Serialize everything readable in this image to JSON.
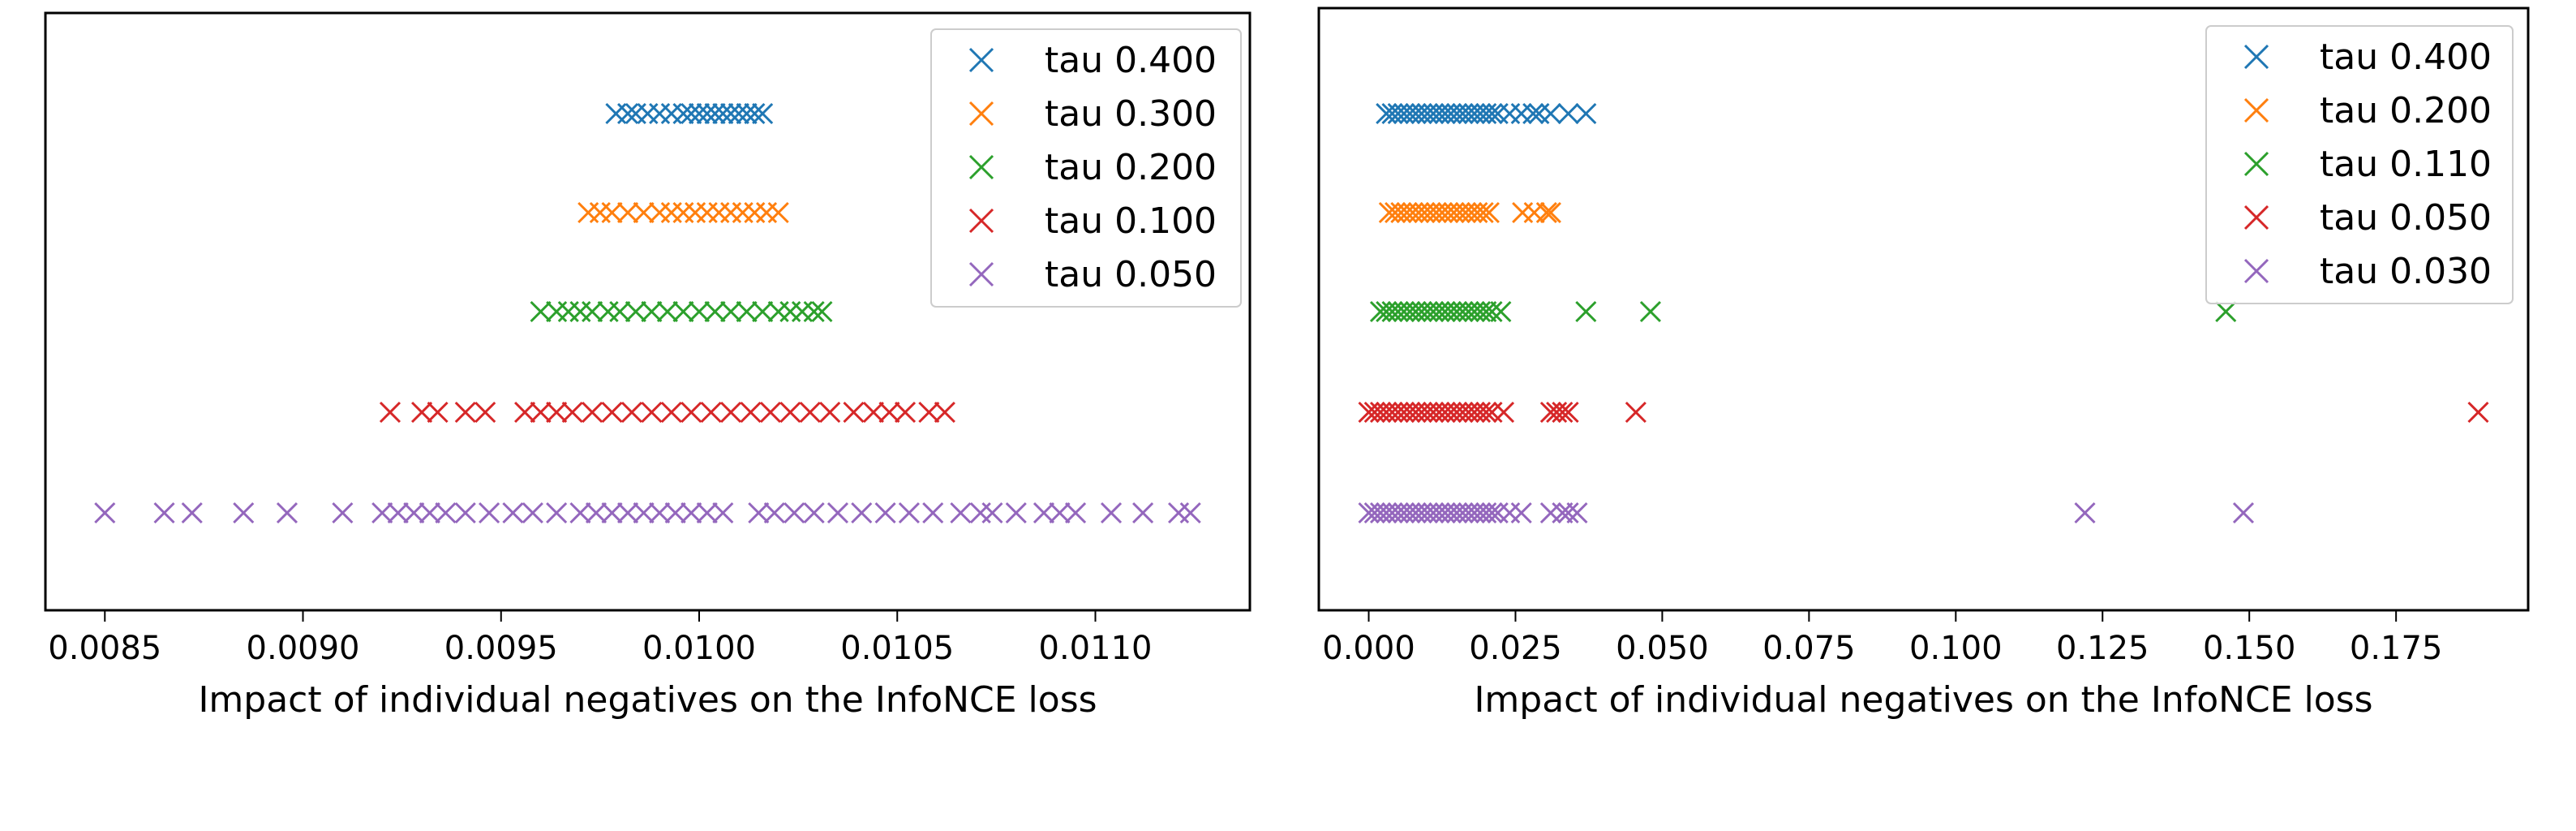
{
  "chart_data": [
    {
      "type": "scatter",
      "title": "",
      "xlabel": "Impact of individual negatives on the InfoNCE loss",
      "ylabel": "",
      "xlim": [
        0.00835,
        0.01139
      ],
      "xticks": [
        0.0085,
        0.009,
        0.0095,
        0.01,
        0.0105,
        0.011
      ],
      "xtick_labels": [
        "0.0085",
        "0.0090",
        "0.0095",
        "0.0100",
        "0.0105",
        "0.0110"
      ],
      "marker": "x",
      "grid": false,
      "legend_position": "top-right",
      "series": [
        {
          "name": "tau 0.400",
          "color": "#1f77b4",
          "row": 0,
          "x": [
            0.00979,
            0.00982,
            0.00984,
            0.00987,
            0.0099,
            0.00993,
            0.00996,
            0.00998,
            0.01,
            0.01002,
            0.01004,
            0.01006,
            0.01008,
            0.0101,
            0.01012,
            0.01014,
            0.01016
          ]
        },
        {
          "name": "tau 0.300",
          "color": "#ff7f0e",
          "row": 1,
          "x": [
            0.00972,
            0.00975,
            0.00978,
            0.00982,
            0.00986,
            0.0099,
            0.00993,
            0.00996,
            0.00999,
            0.01002,
            0.01005,
            0.01008,
            0.01011,
            0.01014,
            0.01017,
            0.0102
          ]
        },
        {
          "name": "tau 0.200",
          "color": "#2ca02c",
          "row": 2,
          "x": [
            0.0096,
            0.00964,
            0.00967,
            0.0097,
            0.00973,
            0.00977,
            0.0098,
            0.00984,
            0.00988,
            0.00992,
            0.00996,
            0.01,
            0.01004,
            0.01008,
            0.01012,
            0.01016,
            0.0102,
            0.01023,
            0.01026,
            0.01029,
            0.01031
          ]
        },
        {
          "name": "tau 0.100",
          "color": "#d62728",
          "row": 3,
          "x": [
            0.00922,
            0.0093,
            0.00934,
            0.00941,
            0.00946,
            0.00956,
            0.0096,
            0.00964,
            0.00968,
            0.00973,
            0.00978,
            0.00983,
            0.00988,
            0.00993,
            0.00998,
            0.01003,
            0.01008,
            0.01013,
            0.01018,
            0.01023,
            0.01028,
            0.01033,
            0.01039,
            0.01044,
            0.01048,
            0.01052,
            0.01058,
            0.01062
          ]
        },
        {
          "name": "tau 0.050",
          "color": "#9467bd",
          "row": 4,
          "x": [
            0.0085,
            0.00865,
            0.00872,
            0.00885,
            0.00896,
            0.0091,
            0.0092,
            0.00924,
            0.00928,
            0.00932,
            0.00936,
            0.00941,
            0.00947,
            0.00953,
            0.00958,
            0.00964,
            0.0097,
            0.00974,
            0.00978,
            0.00982,
            0.00986,
            0.0099,
            0.00994,
            0.00998,
            0.01002,
            0.01006,
            0.01015,
            0.01019,
            0.01024,
            0.01029,
            0.01035,
            0.01041,
            0.01047,
            0.01053,
            0.01059,
            0.01066,
            0.01071,
            0.01074,
            0.0108,
            0.01087,
            0.01091,
            0.01095,
            0.01104,
            0.01112,
            0.01121,
            0.01124
          ]
        }
      ]
    },
    {
      "type": "scatter",
      "title": "",
      "xlabel": "Impact of individual negatives on the InfoNCE loss",
      "ylabel": "",
      "xlim": [
        -0.0085,
        0.1975
      ],
      "xticks": [
        0.0,
        0.025,
        0.05,
        0.075,
        0.1,
        0.125,
        0.15,
        0.175
      ],
      "xtick_labels": [
        "0.000",
        "0.025",
        "0.050",
        "0.075",
        "0.100",
        "0.125",
        "0.150",
        "0.175"
      ],
      "marker": "x",
      "grid": false,
      "legend_position": "top-right",
      "series": [
        {
          "name": "tau 0.400",
          "color": "#1f77b4",
          "row": 0,
          "x": [
            0.003,
            0.004,
            0.005,
            0.006,
            0.007,
            0.008,
            0.009,
            0.01,
            0.011,
            0.012,
            0.013,
            0.014,
            0.015,
            0.016,
            0.017,
            0.018,
            0.019,
            0.02,
            0.021,
            0.022,
            0.024,
            0.026,
            0.028,
            0.029,
            0.031,
            0.034,
            0.037
          ]
        },
        {
          "name": "tau 0.200",
          "color": "#ff7f0e",
          "row": 1,
          "x": [
            0.0035,
            0.0045,
            0.0055,
            0.0065,
            0.0075,
            0.0085,
            0.0095,
            0.0105,
            0.0115,
            0.0125,
            0.0135,
            0.0145,
            0.0155,
            0.0165,
            0.0175,
            0.0185,
            0.0195,
            0.0205,
            0.0262,
            0.0282,
            0.0303,
            0.031
          ]
        },
        {
          "name": "tau 0.110",
          "color": "#2ca02c",
          "row": 2,
          "x": [
            0.002,
            0.003,
            0.004,
            0.005,
            0.006,
            0.007,
            0.008,
            0.009,
            0.01,
            0.011,
            0.012,
            0.013,
            0.014,
            0.015,
            0.016,
            0.017,
            0.018,
            0.019,
            0.02,
            0.021,
            0.0225,
            0.037,
            0.048,
            0.146
          ]
        },
        {
          "name": "tau 0.050",
          "color": "#d62728",
          "row": 3,
          "x": [
            0.0,
            0.001,
            0.002,
            0.003,
            0.004,
            0.005,
            0.006,
            0.007,
            0.008,
            0.009,
            0.01,
            0.011,
            0.012,
            0.013,
            0.014,
            0.015,
            0.016,
            0.017,
            0.018,
            0.019,
            0.02,
            0.021,
            0.023,
            0.031,
            0.032,
            0.033,
            0.034,
            0.0455,
            0.189
          ]
        },
        {
          "name": "tau 0.030",
          "color": "#9467bd",
          "row": 4,
          "x": [
            0.0,
            0.001,
            0.002,
            0.003,
            0.004,
            0.005,
            0.006,
            0.007,
            0.008,
            0.009,
            0.01,
            0.011,
            0.012,
            0.013,
            0.014,
            0.015,
            0.016,
            0.017,
            0.018,
            0.019,
            0.02,
            0.021,
            0.022,
            0.024,
            0.026,
            0.031,
            0.033,
            0.034,
            0.0355,
            0.122,
            0.149
          ]
        }
      ]
    }
  ]
}
